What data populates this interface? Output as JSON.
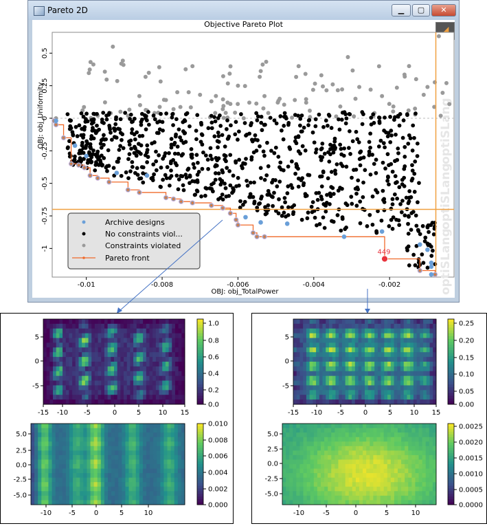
{
  "window": {
    "title": "Pareto 2D",
    "minimize": "▁",
    "maximize": "▢",
    "close": "✕"
  },
  "main_plot": {
    "title": "Objective Pareto Plot",
    "xlabel": "OBJ: obj_TotalPower",
    "ylabel": "OBJ: obj_Uniformity",
    "x_ticks": [
      -0.01,
      -0.008,
      -0.006,
      -0.004,
      -0.002
    ],
    "x_tick_labels": [
      "-0.01",
      "-0.008",
      "-0.006",
      "-0.004",
      "-0.002"
    ],
    "y_ticks": [
      0.5,
      0.25,
      0,
      -0.25,
      -0.5,
      -0.75,
      -1
    ],
    "y_tick_labels": [
      "0.5",
      "0.25",
      "0",
      "-0.25",
      "-0.5",
      "-0.75",
      "-1"
    ],
    "xlim": [
      -0.0109,
      -0.0003
    ],
    "ylim": [
      -1.22,
      0.66
    ],
    "watermark": "optiSLang",
    "legend": [
      "Archive designs",
      "No constraints viol...",
      "Constraints violated",
      "Pareto front"
    ],
    "colors": {
      "archive": "#6a9fd8",
      "ok": "#000000",
      "violated": "#9a9a9a",
      "pareto": "#f06a2a",
      "crosshair": "#f0a040",
      "selected": "#e8323c"
    },
    "selected_label": "449",
    "selected_point": {
      "x": -0.00213,
      "y": -1.08
    },
    "crosshair": {
      "x": -0.00078,
      "y": -0.7
    },
    "pareto_front": [
      [
        -0.01085,
        -0.02
      ],
      [
        -0.0108,
        -0.05
      ],
      [
        -0.0106,
        -0.15
      ],
      [
        -0.0104,
        -0.35
      ],
      [
        -0.0102,
        -0.36
      ],
      [
        -0.01005,
        -0.38
      ],
      [
        -0.0099,
        -0.44
      ],
      [
        -0.0097,
        -0.46
      ],
      [
        -0.0094,
        -0.49
      ],
      [
        -0.0089,
        -0.55
      ],
      [
        -0.0086,
        -0.57
      ],
      [
        -0.0079,
        -0.61
      ],
      [
        -0.0077,
        -0.62
      ],
      [
        -0.0075,
        -0.64
      ],
      [
        -0.0072,
        -0.65
      ],
      [
        -0.0067,
        -0.67
      ],
      [
        -0.0064,
        -0.69
      ],
      [
        -0.0062,
        -0.73
      ],
      [
        -0.00605,
        -0.78
      ],
      [
        -0.006,
        -0.82
      ],
      [
        -0.0056,
        -0.88
      ],
      [
        -0.0055,
        -0.91
      ],
      [
        -0.0053,
        -0.91
      ],
      [
        -0.00213,
        -1.08
      ],
      [
        -0.0012,
        -1.17
      ],
      [
        -0.0008,
        -1.2
      ]
    ],
    "archive_points": [
      [
        -0.0108,
        -0.02
      ],
      [
        -0.0103,
        -0.21
      ],
      [
        -0.01,
        -0.29
      ],
      [
        -0.0092,
        -0.42
      ],
      [
        -0.0084,
        -0.44
      ],
      [
        -0.0058,
        -0.76
      ],
      [
        -0.0054,
        -0.8
      ],
      [
        -0.0047,
        -0.81
      ],
      [
        -0.0032,
        -0.91
      ],
      [
        -0.0022,
        -0.87
      ],
      [
        -0.0012,
        -0.97
      ],
      [
        -0.001,
        -1.01
      ],
      [
        -0.0009,
        -1.11
      ],
      [
        -0.0009,
        -1.14
      ],
      [
        -0.0009,
        -1.2
      ]
    ],
    "violated_points": [
      [
        -0.0108,
        0.0
      ],
      [
        -0.0101,
        0.06
      ],
      [
        -0.0097,
        0.02
      ],
      [
        -0.0093,
        0.55
      ],
      [
        -0.0091,
        0.05
      ],
      [
        -0.0089,
        0.02
      ],
      [
        -0.0086,
        0.17
      ],
      [
        -0.0084,
        0.06
      ],
      [
        -0.0082,
        0.04
      ],
      [
        -0.0079,
        0.14
      ],
      [
        -0.0076,
        0.2
      ],
      [
        -0.0073,
        0.2
      ],
      [
        -0.007,
        0.18
      ],
      [
        -0.0067,
        0.13
      ],
      [
        -0.0064,
        0.07
      ],
      [
        -0.006,
        0.25
      ],
      [
        -0.0057,
        0.12
      ],
      [
        -0.0053,
        0.17
      ],
      [
        -0.0049,
        0.15
      ],
      [
        -0.0045,
        0.14
      ],
      [
        -0.0042,
        0.12
      ],
      [
        -0.0038,
        0.33
      ],
      [
        -0.0035,
        0.26
      ],
      [
        -0.0031,
        0.47
      ],
      [
        -0.0028,
        0.24
      ],
      [
        -0.0025,
        0.22
      ],
      [
        -0.0022,
        0.17
      ],
      [
        -0.0019,
        0.09
      ],
      [
        -0.0016,
        0.32
      ],
      [
        -0.0013,
        0.3
      ],
      [
        -0.001,
        0.24
      ],
      [
        -0.0007,
        0.63
      ],
      [
        -0.0005,
        0.27
      ],
      [
        -0.0052,
        0.04
      ],
      [
        -0.0066,
        0.04
      ],
      [
        -0.0077,
        0.07
      ],
      [
        -0.0033,
        0.09
      ],
      [
        -0.0024,
        0.04
      ],
      [
        -0.0015,
        0.06
      ],
      [
        -0.0072,
        0.4
      ],
      [
        -0.0044,
        0.4
      ],
      [
        -0.0011,
        0.18
      ],
      [
        -0.0029,
        0.15
      ],
      [
        -0.0041,
        0.01
      ],
      [
        -0.0062,
        0.11
      ]
    ],
    "violated_cloud": {
      "count": 80,
      "x": [
        -0.0102,
        -0.0004
      ],
      "y": [
        0.0,
        0.45
      ]
    },
    "ok_cloud": {
      "count": 850,
      "x": [
        -0.0105,
        -0.0012
      ],
      "y": [
        -0.88,
        0.05
      ]
    }
  },
  "heatmaps": [
    {
      "x_tick_labels": [
        "-15",
        "-10",
        "-5",
        "0",
        "5",
        "10",
        "15"
      ],
      "y_tick_labels": [
        "5",
        "0",
        "-5"
      ],
      "cbar_tick_labels": [
        "1.0",
        "0.8",
        "0.6",
        "0.4",
        "0.2",
        "0.0"
      ],
      "pattern": "streaks"
    },
    {
      "x_tick_labels": [
        "-15",
        "-10",
        "-5",
        "0",
        "5",
        "10",
        "15"
      ],
      "y_tick_labels": [
        "5",
        "0",
        "-5"
      ],
      "cbar_tick_labels": [
        "0.25",
        "0.20",
        "0.15",
        "0.10",
        "0.05",
        "0.00"
      ],
      "pattern": "spots"
    },
    {
      "x_tick_labels": [
        "-10",
        "-5",
        "0",
        "5",
        "10"
      ],
      "y_tick_labels": [
        "5.0",
        "2.5",
        "0.0",
        "-2.5",
        "-5.0"
      ],
      "cbar_tick_labels": [
        "0.010",
        "0.008",
        "0.006",
        "0.004",
        "0.002",
        "0.000"
      ],
      "pattern": "bands"
    },
    {
      "x_tick_labels": [
        "-10",
        "-5",
        "0",
        "5",
        "10"
      ],
      "y_tick_labels": [
        "5.0",
        "2.5",
        "0.0",
        "-2.5",
        "-5.0"
      ],
      "cbar_tick_labels": [
        "0.0025",
        "0.0020",
        "0.0015",
        "0.0010",
        "0.0005",
        "0.0000"
      ],
      "pattern": "smooth"
    }
  ]
}
